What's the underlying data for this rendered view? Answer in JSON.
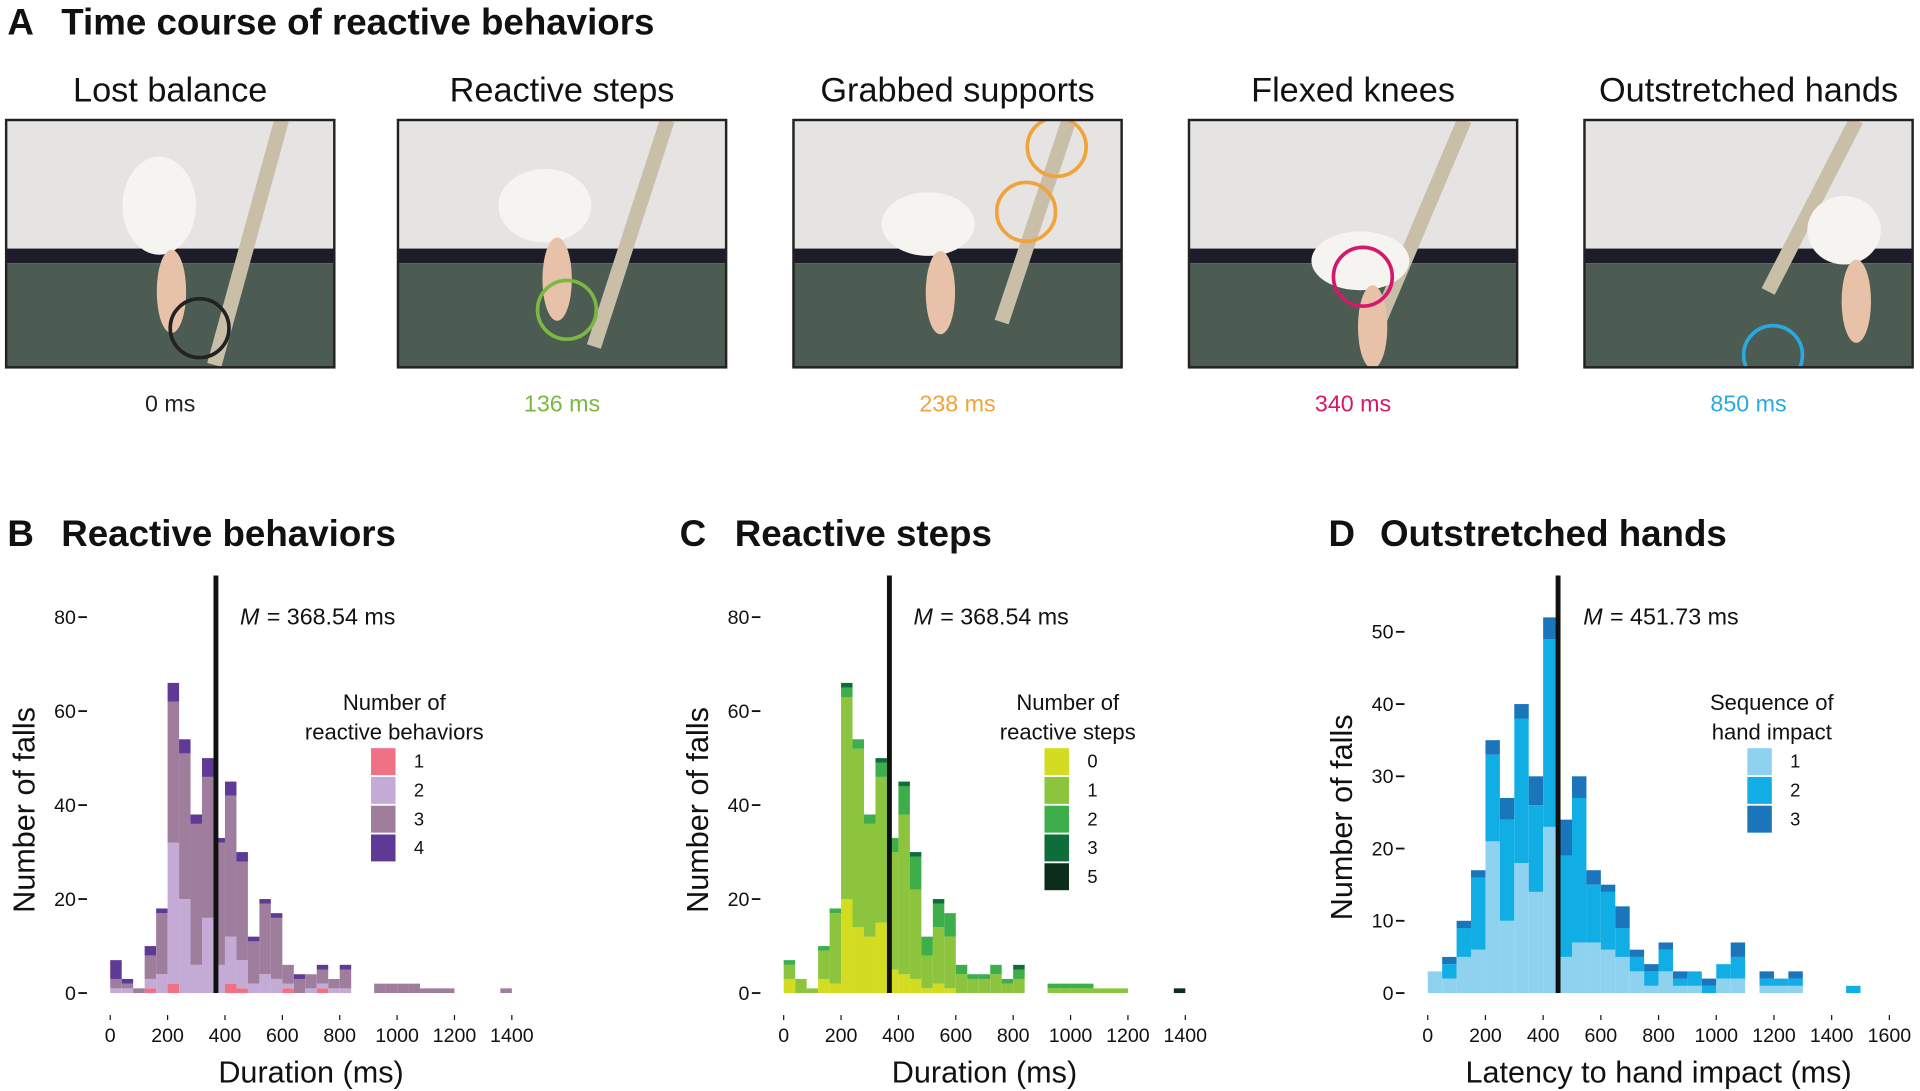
{
  "panel_a": {
    "label": "A",
    "title": "Time course of reactive behaviors",
    "frames": [
      {
        "label": "Lost balance",
        "time": "0 ms",
        "color": "#222222"
      },
      {
        "label": "Reactive steps",
        "time": "136 ms",
        "color": "#7bb842"
      },
      {
        "label": "Grabbed supports",
        "time": "238 ms",
        "color": "#f0a33a"
      },
      {
        "label": "Flexed knees",
        "time": "340 ms",
        "color": "#d4196b"
      },
      {
        "label": "Outstretched hands",
        "time": "850 ms",
        "color": "#2aa9e0"
      }
    ]
  },
  "chart_data": [
    {
      "type": "histogram",
      "panel": "B",
      "title": "Reactive behaviors",
      "xlabel": "Duration (ms)",
      "ylabel": "Number of falls",
      "legend_title": [
        "Number of",
        "reactive behaviors"
      ],
      "mean": 368.54,
      "annotation": {
        "symbol": "M",
        "text": "= 368.54 ms"
      },
      "bins": [
        0,
        40,
        80,
        120,
        160,
        200,
        240,
        280,
        320,
        360,
        400,
        440,
        480,
        520,
        560,
        600,
        640,
        680,
        720,
        760,
        800,
        840,
        880,
        920,
        960,
        1000,
        1040,
        1080,
        1120,
        1160,
        1200,
        1240,
        1280,
        1320,
        1360,
        1400
      ],
      "series": [
        {
          "name": "1",
          "color": "#f07086",
          "values": [
            0,
            0,
            0,
            1,
            0,
            2,
            0,
            0,
            0,
            0,
            2,
            1,
            0,
            0,
            0,
            1,
            0,
            0,
            1,
            0,
            0,
            0,
            0,
            0,
            0,
            0,
            0,
            0,
            0,
            0,
            0,
            0,
            0,
            0,
            0
          ]
        },
        {
          "name": "2",
          "color": "#c3abd6",
          "values": [
            1,
            1,
            0,
            2,
            4,
            30,
            20,
            6,
            16,
            6,
            10,
            6,
            2,
            4,
            3,
            1,
            0,
            1,
            1,
            1,
            1,
            0,
            0,
            0,
            0,
            0,
            0,
            0,
            0,
            0,
            0,
            0,
            0,
            0,
            0
          ]
        },
        {
          "name": "3",
          "color": "#9e7e9c",
          "values": [
            2,
            1,
            1,
            5,
            13,
            30,
            31,
            30,
            30,
            26,
            30,
            21,
            9,
            15,
            13,
            4,
            3,
            3,
            3,
            2,
            4,
            0,
            0,
            2,
            2,
            2,
            2,
            1,
            1,
            1,
            0,
            0,
            0,
            0,
            1
          ]
        },
        {
          "name": "4",
          "color": "#5e3a96",
          "values": [
            4,
            1,
            0,
            2,
            1,
            4,
            3,
            2,
            4,
            1,
            3,
            2,
            1,
            1,
            1,
            0,
            1,
            0,
            1,
            0,
            1,
            0,
            0,
            0,
            0,
            0,
            0,
            0,
            0,
            0,
            0,
            0,
            0,
            0,
            0
          ]
        }
      ],
      "xlim": [
        0,
        1400
      ],
      "ylim": [
        0,
        80
      ],
      "xticks": [
        0,
        200,
        400,
        600,
        800,
        1000,
        1200,
        1400
      ],
      "yticks": [
        0,
        20,
        40,
        60,
        80
      ]
    },
    {
      "type": "histogram",
      "panel": "C",
      "title": "Reactive steps",
      "xlabel": "Duration (ms)",
      "ylabel": "Number of falls",
      "legend_title": [
        "Number of",
        "reactive steps"
      ],
      "mean": 368.54,
      "annotation": {
        "symbol": "M",
        "text": "= 368.54 ms"
      },
      "bins": [
        0,
        40,
        80,
        120,
        160,
        200,
        240,
        280,
        320,
        360,
        400,
        440,
        480,
        520,
        560,
        600,
        640,
        680,
        720,
        760,
        800,
        840,
        880,
        920,
        960,
        1000,
        1040,
        1080,
        1120,
        1160,
        1200,
        1240,
        1280,
        1320,
        1360,
        1400
      ],
      "series": [
        {
          "name": "0",
          "color": "#d4dc21",
          "values": [
            3,
            0,
            0,
            3,
            2,
            20,
            14,
            12,
            15,
            5,
            4,
            3,
            1,
            2,
            1,
            0,
            0,
            0,
            0,
            0,
            0,
            0,
            0,
            0,
            0,
            0,
            0,
            0,
            0,
            0,
            0,
            0,
            0,
            0,
            0
          ]
        },
        {
          "name": "1",
          "color": "#8cc43e",
          "values": [
            3,
            3,
            1,
            6,
            15,
            43,
            38,
            24,
            31,
            25,
            34,
            19,
            7,
            12,
            11,
            4,
            3,
            3,
            4,
            2,
            3,
            0,
            0,
            1,
            1,
            1,
            1,
            1,
            1,
            1,
            0,
            0,
            0,
            0,
            0
          ]
        },
        {
          "name": "2",
          "color": "#3dae4a",
          "values": [
            1,
            0,
            0,
            1,
            1,
            2,
            2,
            2,
            3,
            3,
            6,
            7,
            4,
            5,
            5,
            2,
            1,
            1,
            2,
            1,
            2,
            0,
            0,
            1,
            1,
            1,
            1,
            0,
            0,
            0,
            0,
            0,
            0,
            0,
            0
          ]
        },
        {
          "name": "3",
          "color": "#0e6e3b",
          "values": [
            0,
            0,
            0,
            0,
            0,
            1,
            0,
            0,
            1,
            0,
            1,
            1,
            0,
            1,
            0,
            0,
            0,
            0,
            0,
            0,
            1,
            0,
            0,
            0,
            0,
            0,
            0,
            0,
            0,
            0,
            0,
            0,
            0,
            0,
            0
          ]
        },
        {
          "name": "5",
          "color": "#0c2d1a",
          "values": [
            0,
            0,
            0,
            0,
            0,
            0,
            0,
            0,
            0,
            0,
            0,
            0,
            0,
            0,
            0,
            0,
            0,
            0,
            0,
            0,
            0,
            0,
            0,
            0,
            0,
            0,
            0,
            0,
            0,
            0,
            0,
            0,
            0,
            0,
            1
          ]
        }
      ],
      "xlim": [
        0,
        1400
      ],
      "ylim": [
        0,
        80
      ],
      "xticks": [
        0,
        200,
        400,
        600,
        800,
        1000,
        1200,
        1400
      ],
      "yticks": [
        0,
        20,
        40,
        60,
        80
      ]
    },
    {
      "type": "histogram",
      "panel": "D",
      "title": "Outstretched hands",
      "xlabel": "Latency to hand impact (ms)",
      "ylabel": "Number of falls",
      "legend_title": [
        "Sequence of",
        "hand impact"
      ],
      "mean": 451.73,
      "annotation": {
        "symbol": "M",
        "text": "= 451.73 ms"
      },
      "bins": [
        0,
        50,
        100,
        150,
        200,
        250,
        300,
        350,
        400,
        450,
        500,
        550,
        600,
        650,
        700,
        750,
        800,
        850,
        900,
        950,
        1000,
        1050,
        1100,
        1150,
        1200,
        1250,
        1300,
        1350,
        1400,
        1450,
        1500
      ],
      "series": [
        {
          "name": "1",
          "color": "#8fd2ef",
          "values": [
            3,
            2,
            5,
            6,
            21,
            10,
            18,
            14,
            23,
            5,
            7,
            7,
            6,
            5,
            3,
            1,
            3,
            1,
            1,
            0,
            2,
            2,
            0,
            1,
            1,
            1,
            0,
            0,
            0,
            0
          ]
        },
        {
          "name": "2",
          "color": "#11aee6",
          "values": [
            0,
            2,
            4,
            10,
            12,
            14,
            20,
            12,
            26,
            14,
            20,
            8,
            8,
            4,
            2,
            2,
            3,
            1,
            2,
            1,
            2,
            3,
            0,
            1,
            1,
            1,
            0,
            0,
            0,
            1
          ]
        },
        {
          "name": "3",
          "color": "#1b75bb",
          "values": [
            0,
            1,
            1,
            1,
            2,
            3,
            2,
            4,
            3,
            5,
            3,
            2,
            1,
            3,
            1,
            1,
            1,
            1,
            0,
            1,
            0,
            2,
            0,
            1,
            0,
            1,
            0,
            0,
            0,
            0
          ]
        }
      ],
      "xlim": [
        0,
        1600
      ],
      "ylim": [
        0,
        50
      ],
      "xticks": [
        0,
        200,
        400,
        600,
        800,
        1000,
        1200,
        1400,
        1600
      ],
      "yticks": [
        0,
        10,
        20,
        30,
        40,
        50
      ]
    }
  ]
}
